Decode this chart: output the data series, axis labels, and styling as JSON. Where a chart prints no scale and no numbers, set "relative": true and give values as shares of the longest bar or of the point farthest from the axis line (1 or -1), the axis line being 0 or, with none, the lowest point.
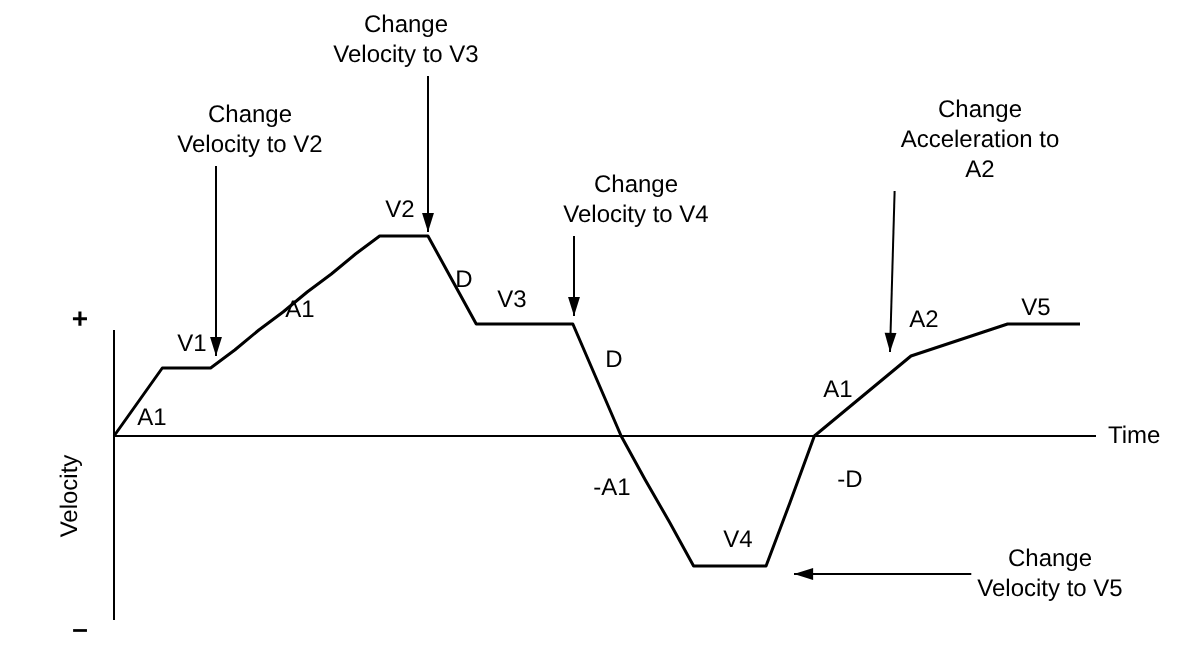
{
  "chart_data": {
    "type": "line",
    "relative": true,
    "xlabel": "Time",
    "ylabel": "Velocity",
    "marker": "none",
    "line_style": "solid",
    "categories": [
      null,
      null,
      null,
      null,
      null,
      null,
      null,
      null,
      null,
      null,
      null,
      null,
      null,
      null,
      null,
      null,
      null,
      null,
      null,
      null,
      null,
      null,
      null,
      null,
      null,
      null,
      null,
      null,
      null,
      null,
      null,
      null,
      null,
      null,
      null,
      null,
      null,
      null,
      null,
      null,
      null
    ],
    "series": [
      {
        "color": "#000000",
        "values": [
          0,
          0.17,
          0.34,
          0.34,
          0.34,
          0.43,
          0.53,
          0.62,
          0.72,
          0.81,
          0.91,
          1,
          1,
          1,
          0.78,
          0.56,
          0.56,
          0.56,
          0.56,
          0.56,
          0.28,
          0,
          -0.22,
          -0.43,
          -0.65,
          -0.65,
          -0.65,
          -0.65,
          -0.33,
          0,
          0.1,
          0.2,
          0.3,
          0.4,
          0.44,
          0.48,
          0.52,
          0.56,
          0.56,
          0.56,
          0.56
        ]
      }
    ],
    "annotations": [
      "+",
      "–",
      "A1",
      "V1",
      "A1",
      "V2",
      "D",
      "V3",
      "D",
      "-A1",
      "V4",
      "-D",
      "A1",
      "A2",
      "V5",
      "Change\nVelocity to V2",
      "Change\nVelocity to V3",
      "Change\nVelocity to V4",
      "Change\nAcceleration to\nA2",
      "Change\nVelocity to V5"
    ]
  }
}
